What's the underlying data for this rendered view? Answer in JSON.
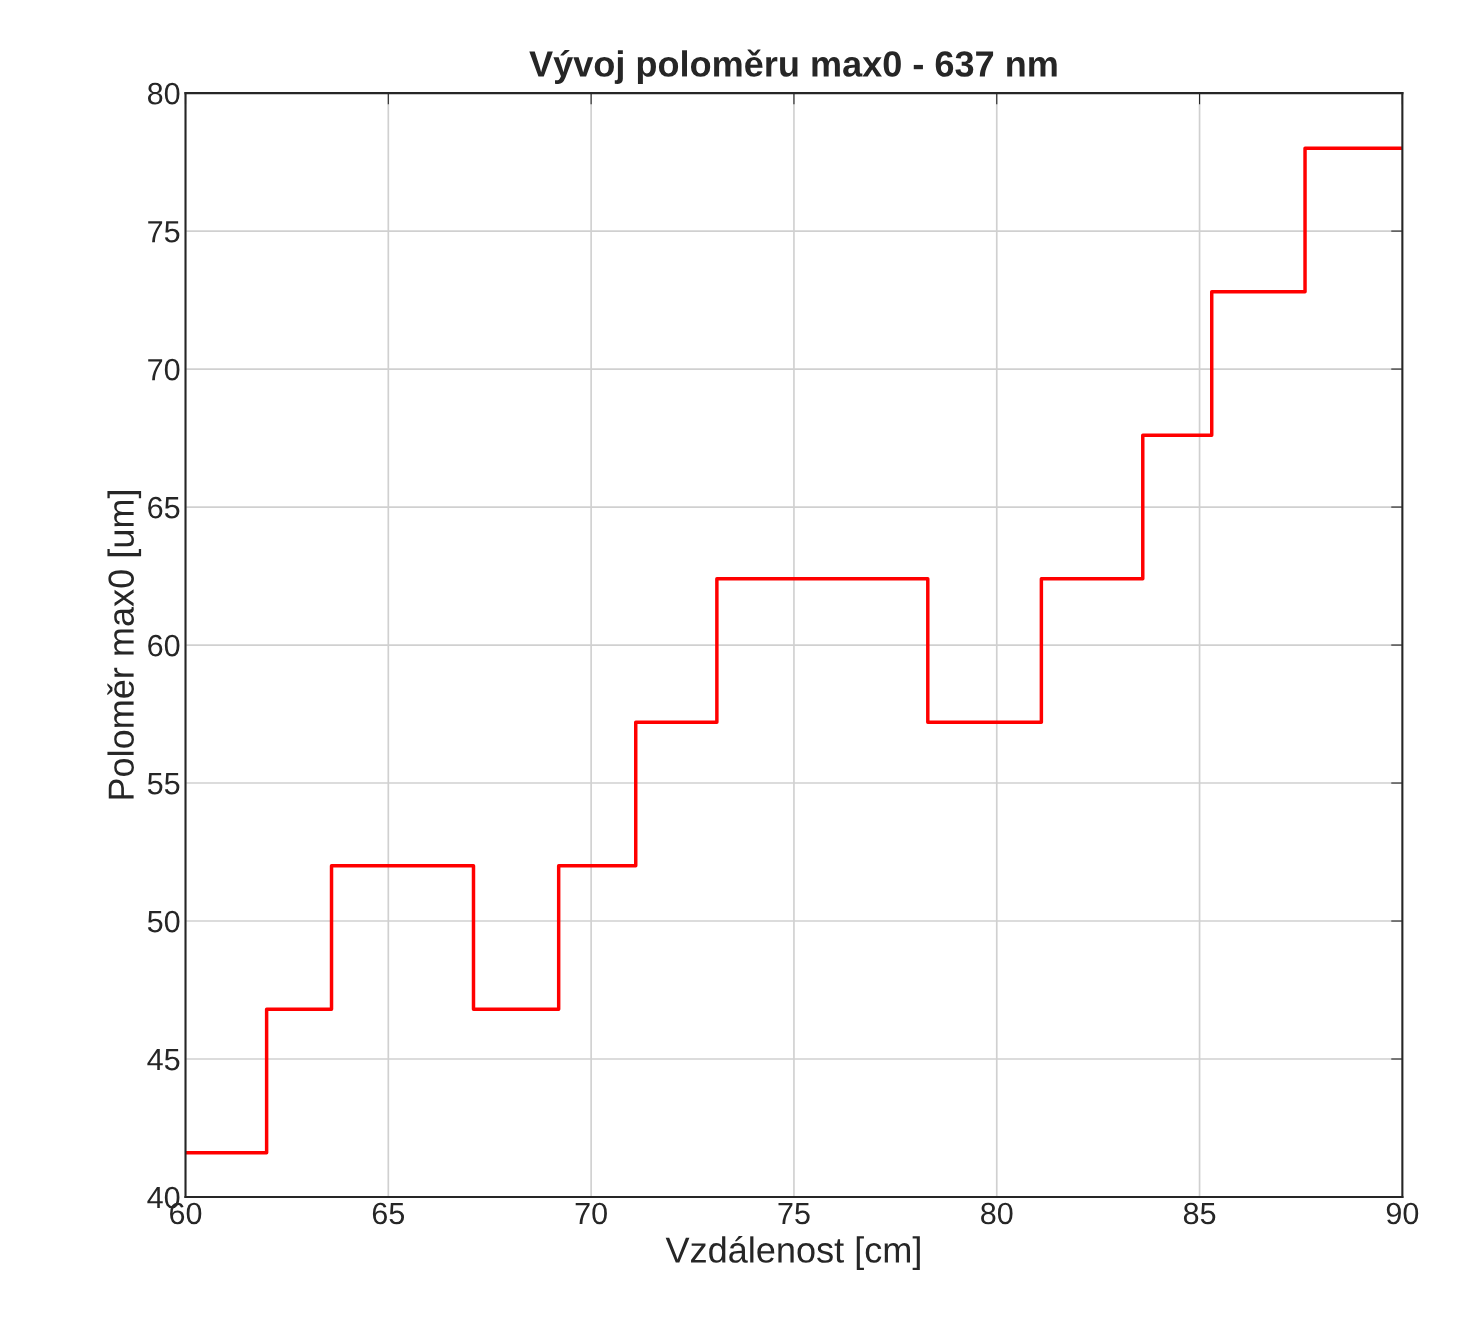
{
  "chart_data": {
    "type": "step",
    "title": "Vývoj poloměru max0 - 637 nm",
    "xlabel": "Vzdálenost [cm]",
    "ylabel": "Poloměr max0 [um]",
    "x": [
      60,
      62.0,
      63.6,
      67.1,
      69.2,
      71.1,
      73.1,
      78.3,
      81.1,
      83.6,
      85.3,
      87.6,
      90
    ],
    "series": [
      {
        "color": "#ff0000",
        "values": [
          41.6,
          46.8,
          52.0,
          46.8,
          52.0,
          57.2,
          62.4,
          57.2,
          62.4,
          67.6,
          72.8,
          78.0,
          78.0
        ]
      }
    ],
    "xlim": [
      60,
      90
    ],
    "xticks": [
      60,
      65,
      70,
      75,
      80,
      85,
      90
    ],
    "ylim": [
      40,
      80
    ],
    "yticks": [
      40,
      45,
      50,
      55,
      60,
      65,
      70,
      75,
      80
    ],
    "grid": true
  }
}
